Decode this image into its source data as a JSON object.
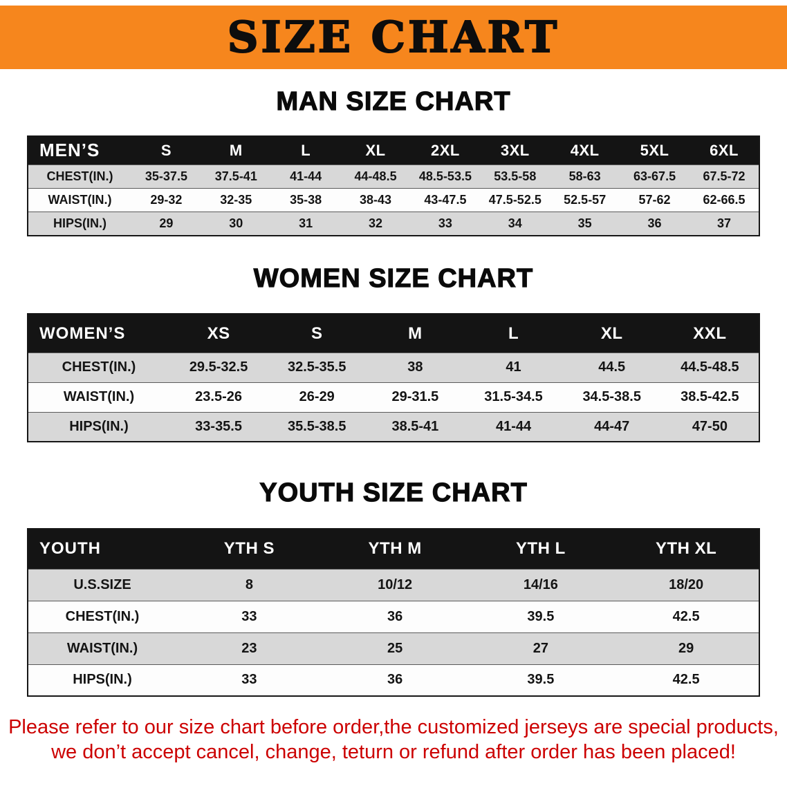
{
  "banner": {
    "title": "SIZE CHART",
    "bg": "#f6861d",
    "text_color": "#0d0d0d"
  },
  "men": {
    "heading": "MAN SIZE CHART",
    "table": {
      "header": [
        "MEN’S",
        "S",
        "M",
        "L",
        "XL",
        "2XL",
        "3XL",
        "4XL",
        "5XL",
        "6XL"
      ],
      "rows": [
        [
          "CHEST(IN.)",
          "35-37.5",
          "37.5-41",
          "41-44",
          "44-48.5",
          "48.5-53.5",
          "53.5-58",
          "58-63",
          "63-67.5",
          "67.5-72"
        ],
        [
          "WAIST(IN.)",
          "29-32",
          "32-35",
          "35-38",
          "38-43",
          "43-47.5",
          "47.5-52.5",
          "52.5-57",
          "57-62",
          "62-66.5"
        ],
        [
          "HIPS(IN.)",
          "29",
          "30",
          "31",
          "32",
          "33",
          "34",
          "35",
          "36",
          "37"
        ]
      ]
    }
  },
  "women": {
    "heading": "WOMEN SIZE CHART",
    "table": {
      "header": [
        "WOMEN’S",
        "XS",
        "S",
        "M",
        "L",
        "XL",
        "XXL"
      ],
      "rows": [
        [
          "CHEST(IN.)",
          "29.5-32.5",
          "32.5-35.5",
          "38",
          "41",
          "44.5",
          "44.5-48.5"
        ],
        [
          "WAIST(IN.)",
          "23.5-26",
          "26-29",
          "29-31.5",
          "31.5-34.5",
          "34.5-38.5",
          "38.5-42.5"
        ],
        [
          "HIPS(IN.)",
          "33-35.5",
          "35.5-38.5",
          "38.5-41",
          "41-44",
          "44-47",
          "47-50"
        ]
      ]
    }
  },
  "youth": {
    "heading": "YOUTH SIZE CHART",
    "table": {
      "header": [
        "YOUTH",
        "YTH S",
        "YTH M",
        "YTH L",
        "YTH XL"
      ],
      "rows": [
        [
          "U.S.SIZE",
          "8",
          "10/12",
          "14/16",
          "18/20"
        ],
        [
          "CHEST(IN.)",
          "33",
          "36",
          "39.5",
          "42.5"
        ],
        [
          "WAIST(IN.)",
          "23",
          "25",
          "27",
          "29"
        ],
        [
          "HIPS(IN.)",
          "33",
          "36",
          "39.5",
          "42.5"
        ]
      ]
    }
  },
  "notice": {
    "line1": "Please refer to our size chart before order,the customized jerseys are special products,",
    "line2": "we don’t accept cancel, change, teturn or refund after order has been placed!",
    "color": "#cc0000"
  }
}
